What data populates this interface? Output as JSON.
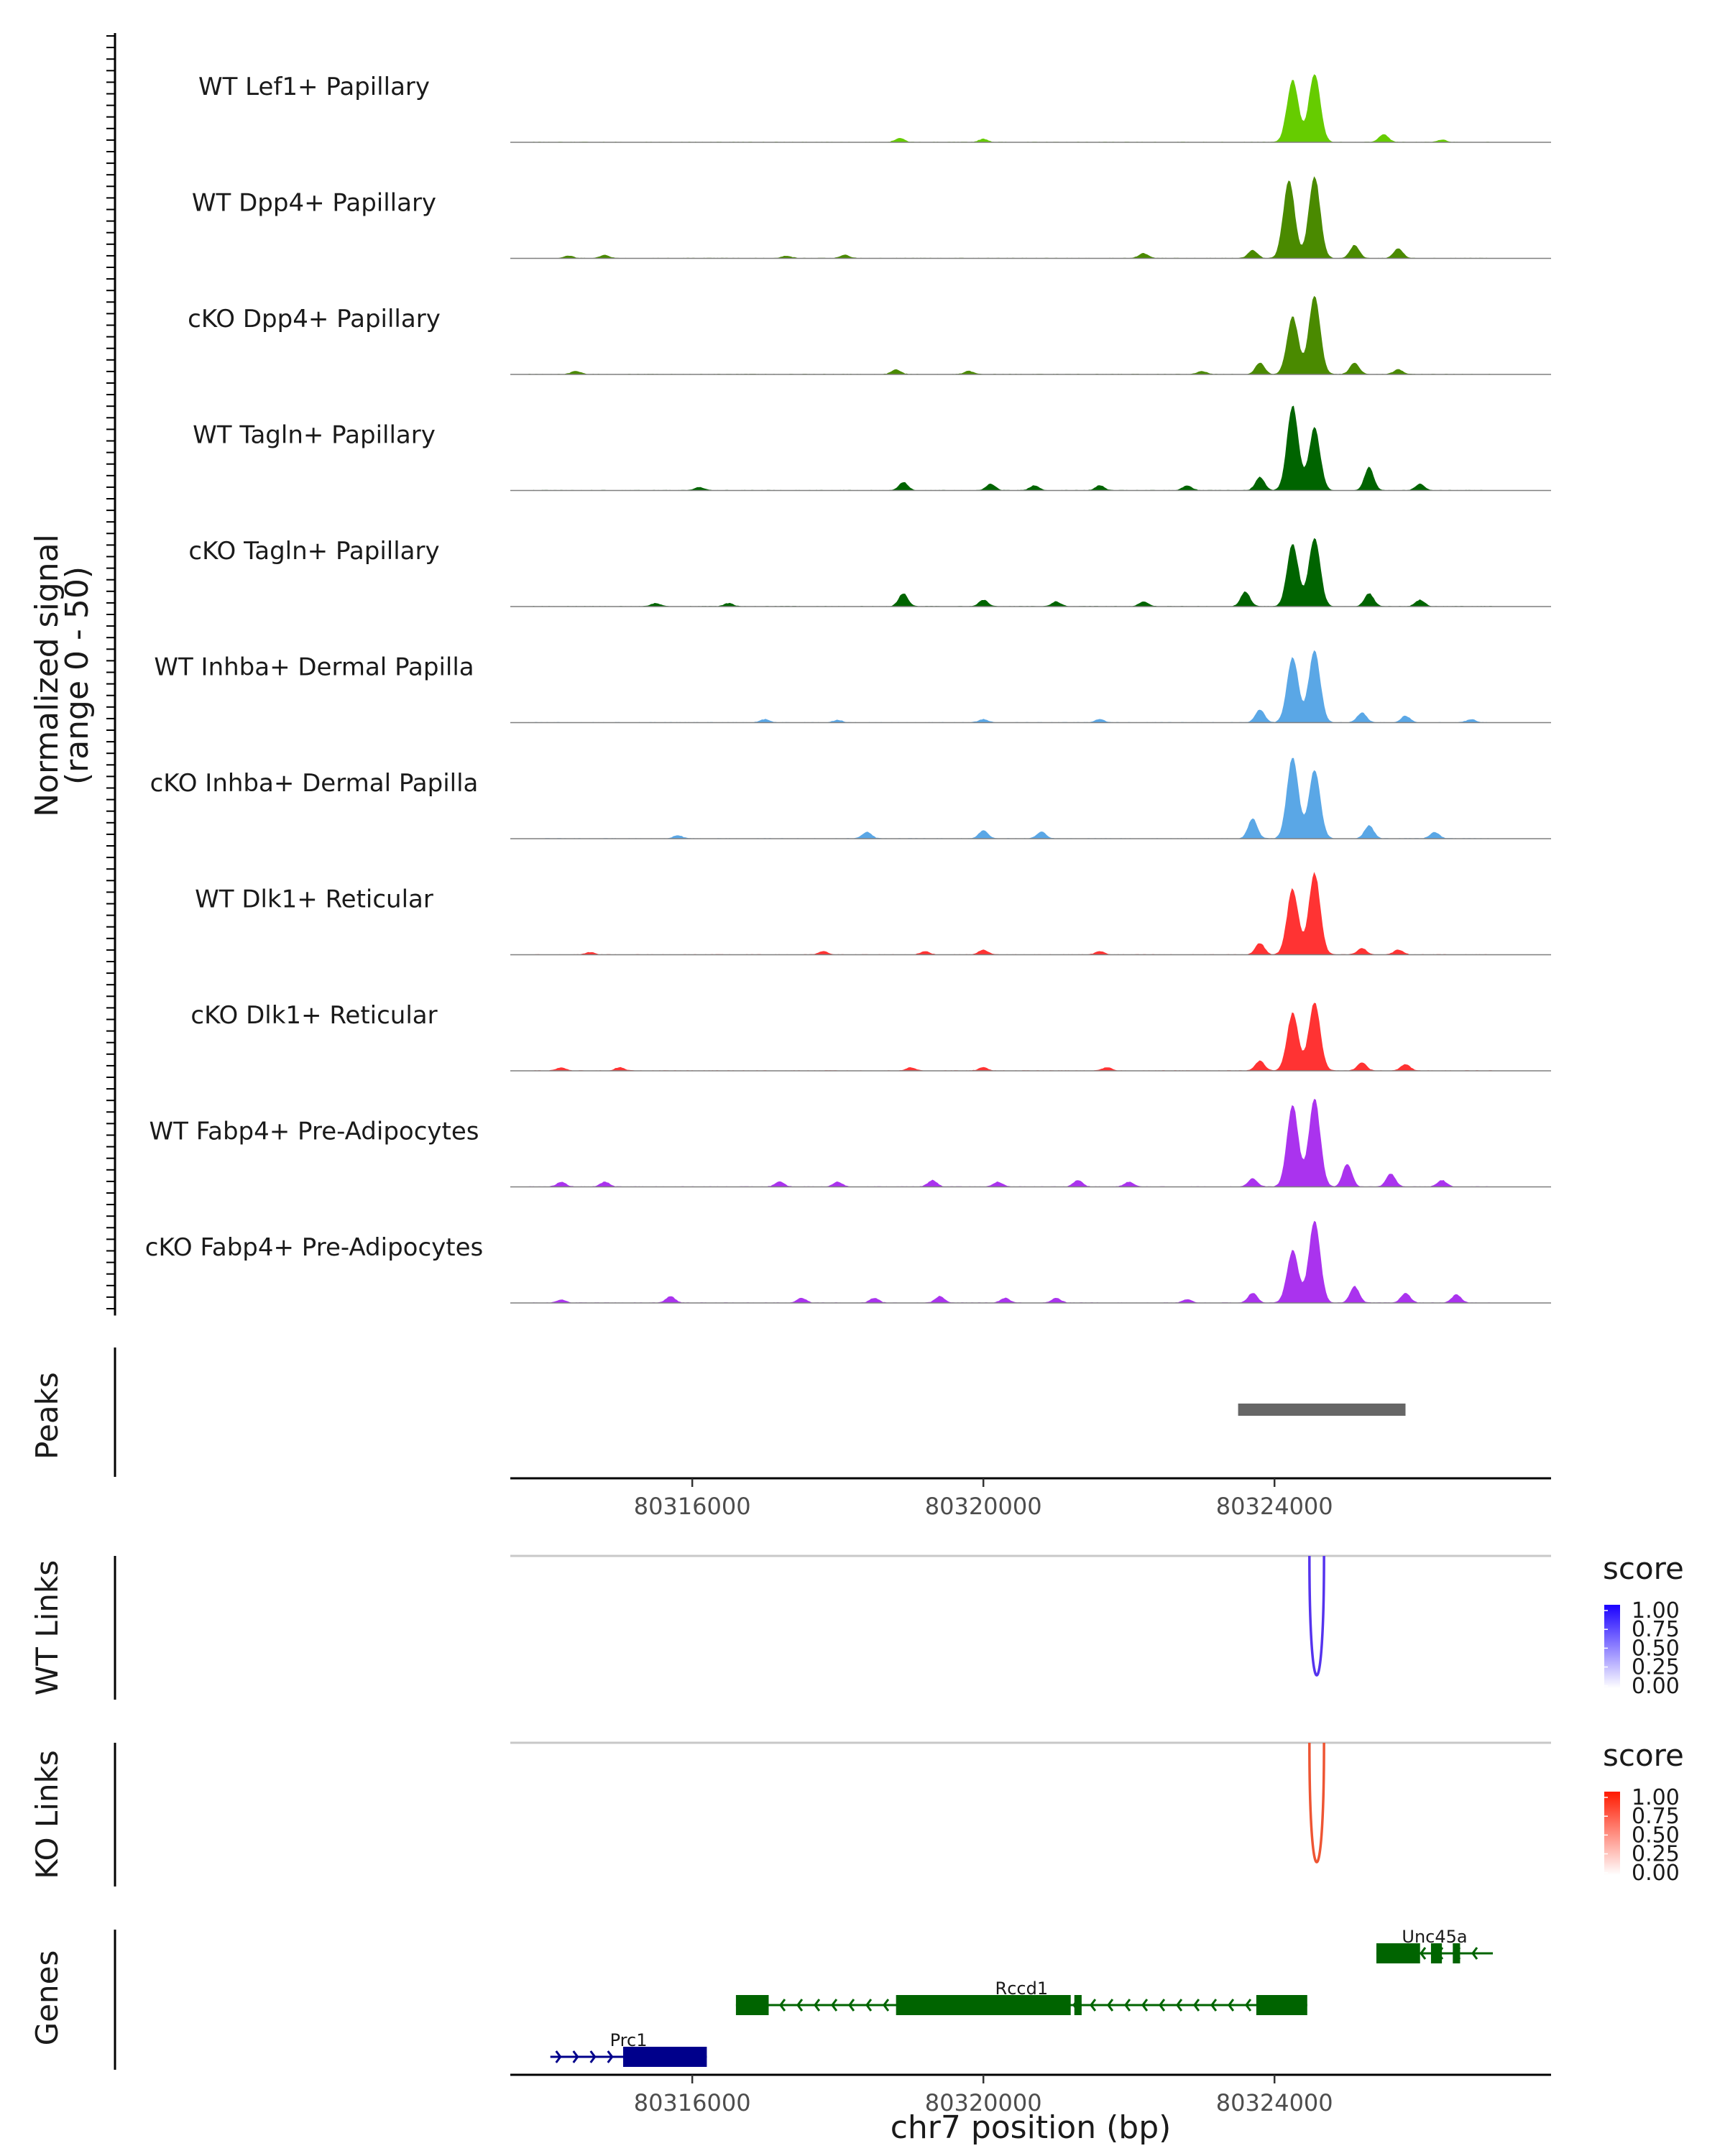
{
  "chart_data": {
    "type": "area",
    "region": "chr7:80313500-80327800",
    "coverage": {
      "ylabel_line1": "Normalized signal",
      "ylabel_line2": "(range 0 - 50)",
      "yrange": [
        0,
        50
      ],
      "tracks": [
        {
          "label": "WT Lef1+ Papillary",
          "color": "#66cc00",
          "profile": "lef1",
          "peaks": [
            [
              80318850,
              2.5
            ],
            [
              80320000,
              2
            ],
            [
              80324250,
              38
            ],
            [
              80324550,
              42
            ],
            [
              80325500,
              5
            ],
            [
              80326300,
              1.5
            ]
          ]
        },
        {
          "label": "WT Dpp4+ Papillary",
          "color": "#4a8a00",
          "profile": "dpp4",
          "peaks": [
            [
              80314300,
              1.5
            ],
            [
              80314800,
              2
            ],
            [
              80317300,
              1.5
            ],
            [
              80318100,
              2
            ],
            [
              80322200,
              3
            ],
            [
              80323700,
              5
            ],
            [
              80324200,
              48
            ],
            [
              80324550,
              50
            ],
            [
              80325100,
              8
            ],
            [
              80325700,
              6
            ]
          ]
        },
        {
          "label": "cKO Dpp4+ Papillary",
          "color": "#4a8a00",
          "profile": "dpp4",
          "peaks": [
            [
              80314400,
              2
            ],
            [
              80318800,
              3
            ],
            [
              80319800,
              2
            ],
            [
              80323000,
              2
            ],
            [
              80323800,
              7
            ],
            [
              80324250,
              35
            ],
            [
              80324550,
              48
            ],
            [
              80325100,
              7
            ],
            [
              80325700,
              3
            ]
          ]
        },
        {
          "label": "WT Tagln+ Papillary",
          "color": "#006400",
          "profile": "tagln",
          "peaks": [
            [
              80316100,
              2
            ],
            [
              80318900,
              5
            ],
            [
              80320100,
              4
            ],
            [
              80320700,
              3
            ],
            [
              80321600,
              3
            ],
            [
              80322800,
              3
            ],
            [
              80323800,
              8
            ],
            [
              80324250,
              52
            ],
            [
              80324550,
              38
            ],
            [
              80325300,
              14
            ],
            [
              80326000,
              4
            ]
          ]
        },
        {
          "label": "cKO Tagln+ Papillary",
          "color": "#006400",
          "profile": "tagln",
          "peaks": [
            [
              80315500,
              2
            ],
            [
              80316500,
              2
            ],
            [
              80318900,
              8
            ],
            [
              80320000,
              4
            ],
            [
              80321000,
              3
            ],
            [
              80322200,
              3
            ],
            [
              80323600,
              9
            ],
            [
              80324250,
              38
            ],
            [
              80324550,
              42
            ],
            [
              80325300,
              8
            ],
            [
              80326000,
              4
            ]
          ]
        },
        {
          "label": "WT Inhba+ Dermal Papilla",
          "color": "#5aa7e6",
          "profile": "inhba",
          "peaks": [
            [
              80317000,
              2
            ],
            [
              80318000,
              1.5
            ],
            [
              80320000,
              2
            ],
            [
              80321600,
              2
            ],
            [
              80323800,
              8
            ],
            [
              80324250,
              40
            ],
            [
              80324550,
              44
            ],
            [
              80325200,
              6
            ],
            [
              80325800,
              4
            ],
            [
              80326700,
              2
            ]
          ]
        },
        {
          "label": "cKO Inhba+ Dermal Papilla",
          "color": "#5aa7e6",
          "profile": "inhba",
          "peaks": [
            [
              80315800,
              2
            ],
            [
              80318400,
              4
            ],
            [
              80320000,
              5
            ],
            [
              80320800,
              4
            ],
            [
              80323700,
              12
            ],
            [
              80324250,
              50
            ],
            [
              80324550,
              42
            ],
            [
              80325300,
              8
            ],
            [
              80326200,
              4
            ]
          ]
        },
        {
          "label": "WT Dlk1+ Reticular",
          "color": "#ff3333",
          "profile": "dlk1",
          "peaks": [
            [
              80314600,
              1.5
            ],
            [
              80317800,
              2
            ],
            [
              80319200,
              2
            ],
            [
              80320000,
              3
            ],
            [
              80321600,
              2
            ],
            [
              80323800,
              7
            ],
            [
              80324250,
              40
            ],
            [
              80324550,
              50
            ],
            [
              80325200,
              4
            ],
            [
              80325700,
              3
            ]
          ]
        },
        {
          "label": "cKO Dlk1+ Reticular",
          "color": "#ff3333",
          "profile": "dlk1",
          "peaks": [
            [
              80314200,
              2
            ],
            [
              80315000,
              2
            ],
            [
              80319000,
              2
            ],
            [
              80320000,
              2
            ],
            [
              80321700,
              2
            ],
            [
              80323800,
              6
            ],
            [
              80324250,
              35
            ],
            [
              80324550,
              42
            ],
            [
              80325200,
              5
            ],
            [
              80325800,
              4
            ]
          ]
        },
        {
          "label": "WT Fabp4+ Pre-Adipocytes",
          "color": "#aa33ee",
          "profile": "fabp4",
          "peaks": [
            [
              80314200,
              3
            ],
            [
              80314800,
              3
            ],
            [
              80317200,
              3
            ],
            [
              80318000,
              3
            ],
            [
              80319300,
              4
            ],
            [
              80320200,
              3
            ],
            [
              80321300,
              4
            ],
            [
              80322000,
              3
            ],
            [
              80323700,
              5
            ],
            [
              80324250,
              50
            ],
            [
              80324550,
              54
            ],
            [
              80325000,
              14
            ],
            [
              80325600,
              8
            ],
            [
              80326300,
              4
            ]
          ]
        },
        {
          "label": "cKO Fabp4+ Pre-Adipocytes",
          "color": "#aa33ee",
          "profile": "fabp4",
          "peaks": [
            [
              80314200,
              2
            ],
            [
              80315700,
              4
            ],
            [
              80317500,
              3
            ],
            [
              80318500,
              3
            ],
            [
              80319400,
              4
            ],
            [
              80320300,
              3
            ],
            [
              80321000,
              3
            ],
            [
              80322800,
              2
            ],
            [
              80323700,
              6
            ],
            [
              80324250,
              32
            ],
            [
              80324550,
              50
            ],
            [
              80325100,
              10
            ],
            [
              80325800,
              6
            ],
            [
              80326500,
              5
            ]
          ]
        }
      ]
    },
    "peaks_track": {
      "title": "Peaks",
      "bars": [
        {
          "start": 80323500,
          "end": 80325800
        }
      ],
      "color": "#666666"
    },
    "x_axis": {
      "range": [
        80313500,
        80327800
      ],
      "ticks": [
        80316000,
        80320000,
        80324000
      ],
      "tick_labels": [
        "80316000",
        "80320000",
        "80324000"
      ],
      "xlabel": "chr7 position (bp)"
    },
    "links": [
      {
        "title": "WT Links",
        "score": 0.9,
        "start": 80324480,
        "end": 80324680,
        "color": "#5533ee",
        "legend": {
          "title": "score",
          "ticks": [
            "1.00",
            "0.75",
            "0.50",
            "0.25",
            "0.00"
          ],
          "low": "#ffffff",
          "high": "#1a00ff"
        }
      },
      {
        "title": "KO Links",
        "score": 0.9,
        "start": 80324480,
        "end": 80324680,
        "color": "#ee5533",
        "legend": {
          "title": "score",
          "ticks": [
            "1.00",
            "0.75",
            "0.50",
            "0.25",
            "0.00"
          ],
          "low": "#ffffff",
          "high": "#ff1a00"
        }
      }
    ],
    "genes_track": {
      "title": "Genes",
      "genes": [
        {
          "name": "Unc45a",
          "strand": "-",
          "row": 0,
          "color": "#006400",
          "start": 80325400,
          "end": 80327000,
          "exons": [
            [
              80325400,
              80326000
            ],
            [
              80326150,
              80326300
            ],
            [
              80326450,
              80326550
            ]
          ]
        },
        {
          "name": "Rccd1",
          "strand": "-",
          "row": 1,
          "color": "#006400",
          "start": 80316600,
          "end": 80324450,
          "exons": [
            [
              80316600,
              80317050
            ],
            [
              80318800,
              80321200
            ],
            [
              80321250,
              80321350
            ],
            [
              80323750,
              80324450
            ]
          ]
        },
        {
          "name": "Prc1",
          "strand": "+",
          "row": 2,
          "color": "#00008b",
          "start": 80314050,
          "end": 80316200,
          "exons": [
            [
              80315050,
              80316200
            ]
          ]
        }
      ]
    }
  }
}
